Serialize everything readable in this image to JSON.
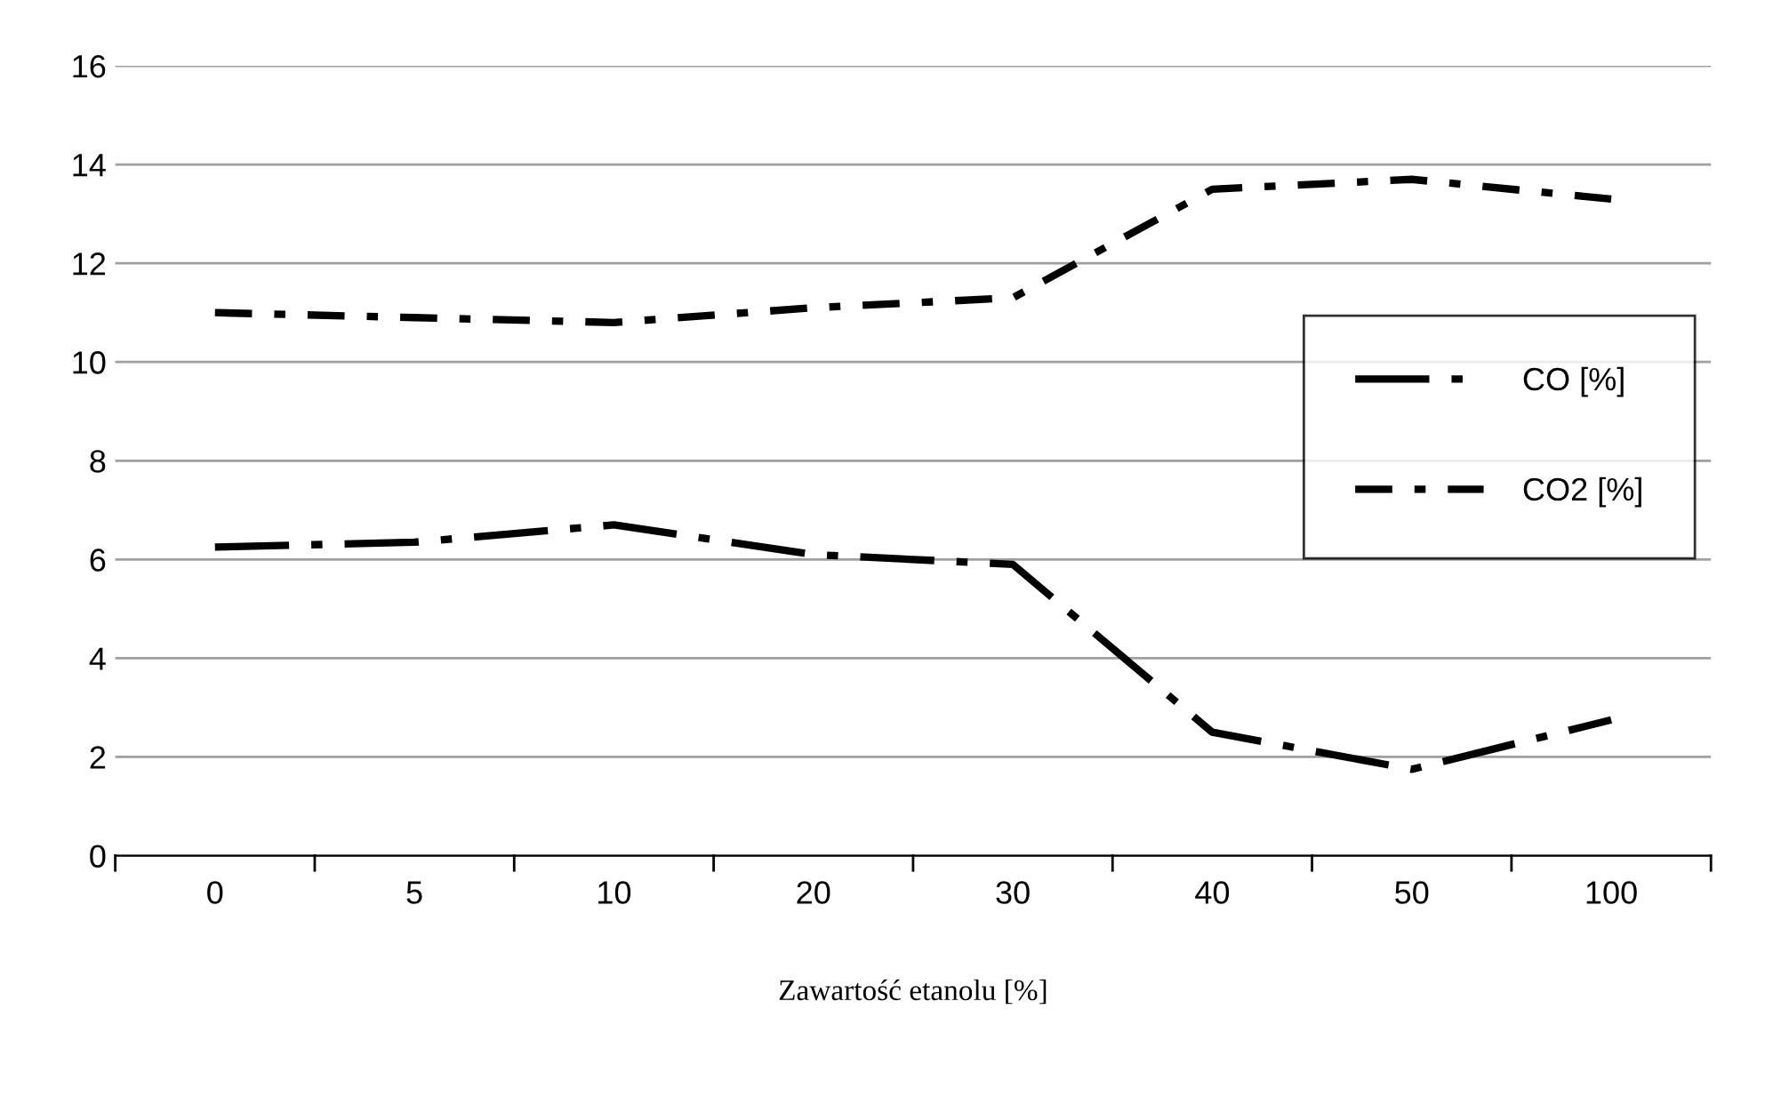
{
  "chart_data": {
    "type": "line",
    "xlabel": "Zawartość etanolu [%]",
    "categories": [
      "0",
      "5",
      "10",
      "20",
      "30",
      "40",
      "50",
      "100"
    ],
    "series": [
      {
        "name": "CO [%]",
        "color": "#000000",
        "values": [
          6.25,
          6.35,
          6.7,
          6.1,
          5.9,
          2.5,
          1.75,
          2.75
        ]
      },
      {
        "name": "CO2 [%]",
        "color": "#000000",
        "values": [
          11.0,
          10.9,
          10.8,
          11.1,
          11.3,
          13.5,
          13.7,
          13.3
        ]
      }
    ],
    "ylim": [
      0,
      16
    ],
    "yticks": [
      0,
      2,
      4,
      6,
      8,
      10,
      12,
      14,
      16
    ],
    "grid": "y",
    "legend": "right",
    "line_style": "dashed",
    "marker": "none"
  }
}
